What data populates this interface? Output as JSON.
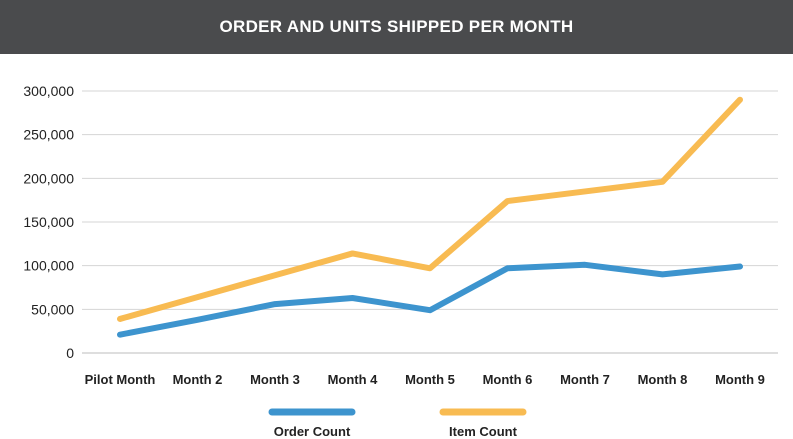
{
  "chart_data": {
    "type": "line",
    "title": "ORDER AND UNITS SHIPPED PER MONTH",
    "categories": [
      "Pilot Month",
      "Month 2",
      "Month 3",
      "Month 4",
      "Month 5",
      "Month 6",
      "Month 7",
      "Month 8",
      "Month 9"
    ],
    "series": [
      {
        "name": "Order Count",
        "color": "#3d94ce",
        "values": [
          21000,
          38000,
          56000,
          63000,
          49000,
          97000,
          101000,
          90000,
          99000
        ]
      },
      {
        "name": "Item Count",
        "color": "#f8bb52",
        "values": [
          39000,
          64000,
          89000,
          114000,
          97000,
          174000,
          185000,
          196000,
          290000
        ]
      }
    ],
    "y_ticks": [
      "0",
      "50,000",
      "100,000",
      "150,000",
      "200,000",
      "250,000",
      "300,000"
    ],
    "ylim": [
      0,
      300000
    ],
    "xlabel": "",
    "ylabel": "",
    "grid": true,
    "legend_position": "bottom"
  }
}
